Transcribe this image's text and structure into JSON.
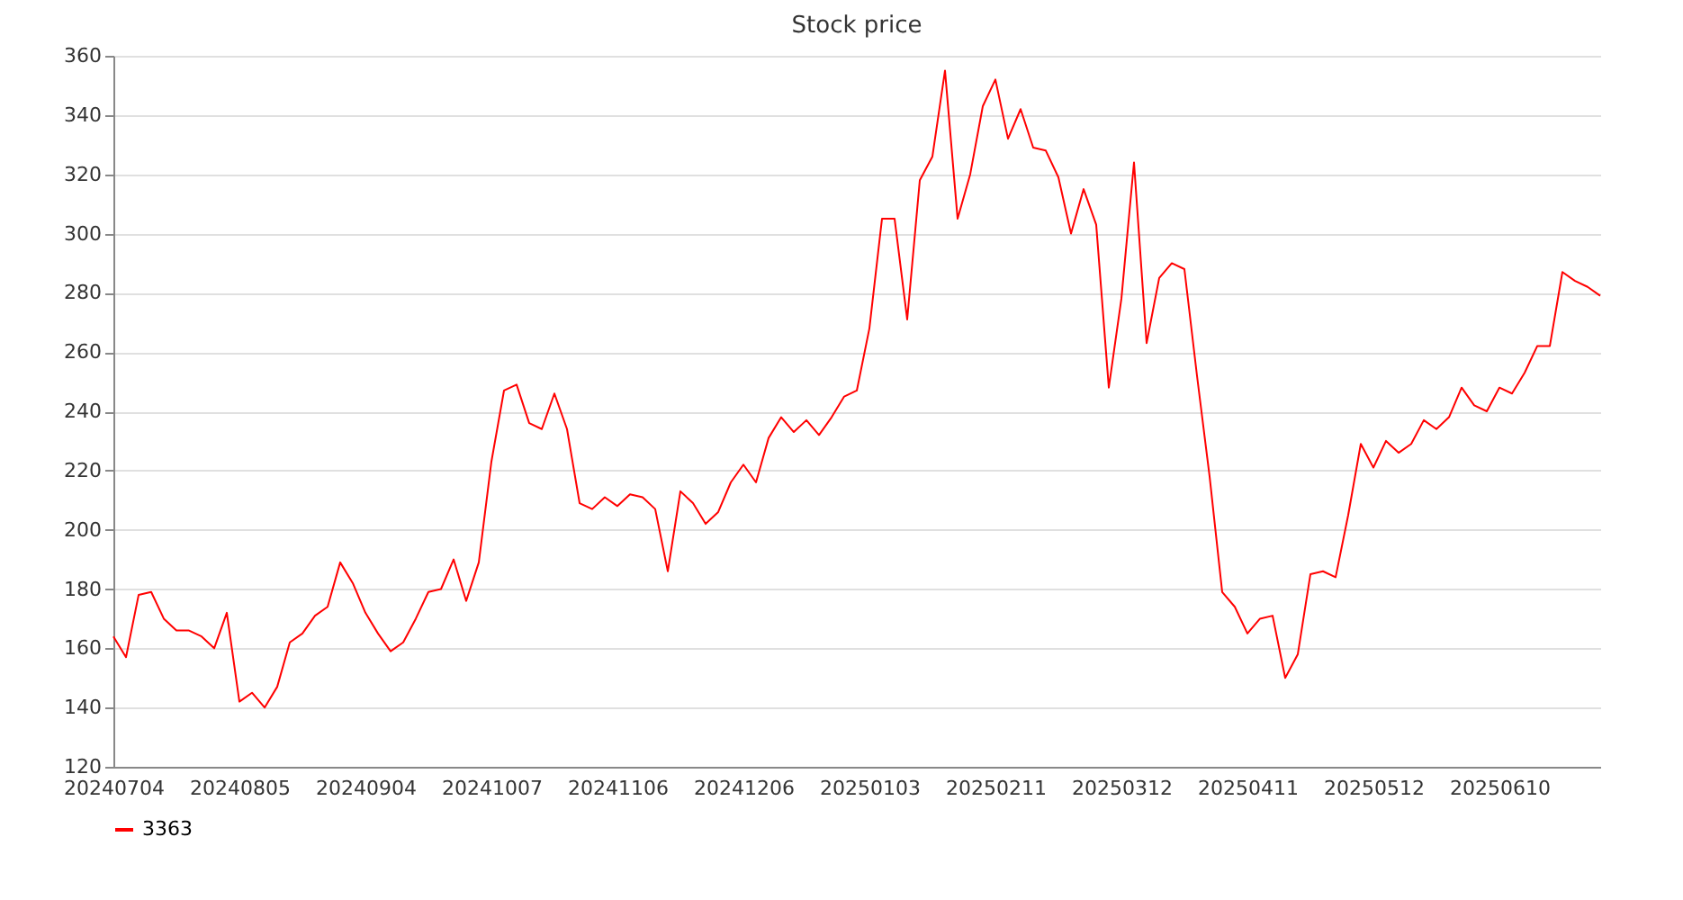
{
  "chart_data": {
    "type": "line",
    "title": "Stock price",
    "categories": [
      "20240704",
      null,
      null,
      null,
      null,
      null,
      null,
      null,
      null,
      null,
      "20240805",
      null,
      null,
      null,
      null,
      null,
      null,
      null,
      null,
      null,
      "20240904",
      null,
      null,
      null,
      null,
      null,
      null,
      null,
      null,
      null,
      "20241007",
      null,
      null,
      null,
      null,
      null,
      null,
      null,
      null,
      null,
      "20241106",
      null,
      null,
      null,
      null,
      null,
      null,
      null,
      null,
      null,
      "20241206",
      null,
      null,
      null,
      null,
      null,
      null,
      null,
      null,
      null,
      "20250103",
      null,
      null,
      null,
      null,
      null,
      null,
      null,
      null,
      null,
      "20250211",
      null,
      null,
      null,
      null,
      null,
      null,
      null,
      null,
      null,
      "20250312",
      null,
      null,
      null,
      null,
      null,
      null,
      null,
      null,
      null,
      "20250411",
      null,
      null,
      null,
      null,
      null,
      null,
      null,
      null,
      null,
      "20250512",
      null,
      null,
      null,
      null,
      null,
      null,
      null,
      null,
      null,
      "20250610",
      null,
      null,
      null,
      null,
      null,
      null,
      null,
      null
    ],
    "series": [
      {
        "name": "3363",
        "color": "#ff0000",
        "values": [
          164,
          157,
          178,
          179,
          170,
          166,
          166,
          164,
          160,
          172,
          142,
          145,
          140,
          147,
          162,
          165,
          171,
          174,
          189,
          182,
          172,
          165,
          159,
          162,
          170,
          179,
          180,
          190,
          176,
          189,
          223,
          247,
          249,
          236,
          234,
          246,
          234,
          209,
          207,
          211,
          208,
          212,
          211,
          207,
          186,
          213,
          209,
          202,
          206,
          216,
          222,
          216,
          231,
          238,
          233,
          237,
          232,
          238,
          245,
          247,
          268,
          305,
          305,
          271,
          318,
          326,
          355,
          305,
          320,
          343,
          352,
          332,
          342,
          329,
          328,
          319,
          300,
          315,
          303,
          248,
          278,
          324,
          263,
          285,
          290,
          288,
          252,
          218,
          179,
          174,
          165,
          170,
          171,
          150,
          158,
          185,
          186,
          184,
          205,
          229,
          221,
          230,
          226,
          229,
          237,
          234,
          238,
          248,
          242,
          240,
          248,
          246,
          253,
          262,
          262,
          287,
          284,
          282,
          279
        ]
      }
    ],
    "ylim": [
      120,
      360
    ],
    "yticks": [
      120,
      140,
      160,
      180,
      200,
      220,
      240,
      260,
      280,
      300,
      320,
      340,
      360
    ],
    "grid": "y",
    "legend": "bottom",
    "marker": "none",
    "line_style": "solid"
  }
}
